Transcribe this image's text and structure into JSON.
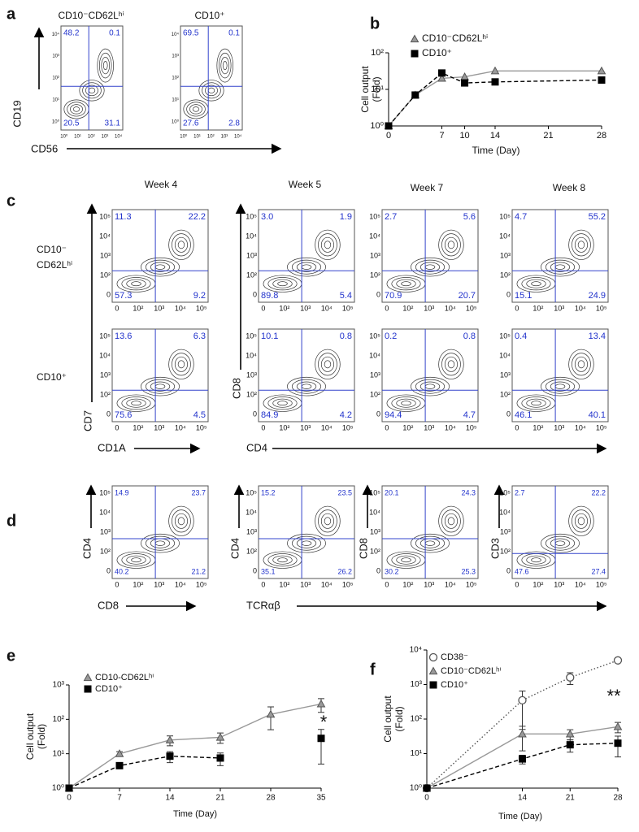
{
  "panel_labels": [
    "a",
    "b",
    "c",
    "d",
    "e",
    "f"
  ],
  "a_ticks": [
    "10⁰",
    "10¹",
    "10²",
    "10³",
    "10⁴"
  ],
  "flow_ticks": [
    "0",
    "10²",
    "10³",
    "10⁴",
    "10⁵"
  ],
  "flow_a": {
    "col_titles": [
      "CD10⁻CD62Lʰⁱ",
      "CD10⁺"
    ],
    "y_label": "CD19",
    "x_label": "CD56",
    "plots": [
      [
        "48.2",
        "0.1",
        "20.5",
        "31.1"
      ],
      [
        "69.5",
        "0.1",
        "27.6",
        "2.8"
      ]
    ]
  },
  "flow_c": {
    "col_titles": [
      "Week 4",
      "Week 5",
      "Week 7",
      "Week 8"
    ],
    "row_labels": [
      [
        "CD10⁻",
        "CD62Lʰⁱ"
      ],
      [
        "CD10⁺"
      ]
    ],
    "y_labels": [
      "CD7",
      "CD8"
    ],
    "x_labels": [
      "CD1A",
      "CD4"
    ],
    "plots": [
      [
        [
          "11.3",
          "22.2",
          "57.3",
          "9.2"
        ],
        [
          "3.0",
          "1.9",
          "89.8",
          "5.4"
        ],
        [
          "2.7",
          "5.6",
          "70.9",
          "20.7"
        ],
        [
          "4.7",
          "55.2",
          "15.1",
          "24.9"
        ]
      ],
      [
        [
          "13.6",
          "6.3",
          "75.6",
          "4.5"
        ],
        [
          "10.1",
          "0.8",
          "84.9",
          "4.2"
        ],
        [
          "0.2",
          "0.8",
          "94.4",
          "4.7"
        ],
        [
          "0.4",
          "13.4",
          "46.1",
          "40.1"
        ]
      ]
    ]
  },
  "flow_d": {
    "y_labels": [
      "CD4",
      "CD4",
      "CD8",
      "CD3"
    ],
    "x_labels": [
      "CD8",
      "TCRαβ"
    ],
    "plots": [
      [
        "14.9",
        "23.7",
        "40.2",
        "21.2"
      ],
      [
        "15.2",
        "23.5",
        "35.1",
        "26.2"
      ],
      [
        "20.1",
        "24.3",
        "30.2",
        "25.3"
      ],
      [
        "2.7",
        "22.2",
        "47.6",
        "27.4"
      ]
    ]
  },
  "chart_data": [
    {
      "type": "line",
      "y_label": [
        "Cell output",
        "(Fold)"
      ],
      "x_label": "Time (Day)",
      "log_y": true,
      "x": [
        0,
        3.5,
        7,
        10,
        14,
        28
      ],
      "xlim": [
        0,
        28
      ],
      "xticks": [
        0,
        7,
        10,
        14,
        21,
        28
      ],
      "ylim": [
        1,
        100
      ],
      "yticks": [
        {
          "value": 1,
          "label": "10⁰"
        },
        {
          "value": 10,
          "label": "10¹"
        },
        {
          "value": 100,
          "label": "10²"
        }
      ],
      "series": [
        {
          "name": "CD10⁻CD62Lʰⁱ",
          "color": "#999999",
          "marker": "triangle",
          "dash": "solid",
          "values": [
            1,
            7,
            20,
            22,
            32,
            32
          ]
        },
        {
          "name": "CD10⁺",
          "color": "#000000",
          "marker": "square",
          "dash": "dashed",
          "values": [
            1,
            7,
            28,
            15,
            16,
            18
          ]
        }
      ]
    },
    {
      "type": "line",
      "y_label": [
        "Cell output",
        "(Fold)"
      ],
      "x_label": "Time (Day)",
      "log_y": true,
      "annotation": "*",
      "x": [
        0,
        7,
        14,
        21,
        28,
        35
      ],
      "xlim": [
        0,
        35
      ],
      "xticks": [
        0,
        7,
        14,
        21,
        28,
        35
      ],
      "ylim": [
        1,
        1000
      ],
      "yticks": [
        {
          "value": 1,
          "label": "10⁰"
        },
        {
          "value": 10,
          "label": "10¹"
        },
        {
          "value": 100,
          "label": "10²"
        },
        {
          "value": 1000,
          "label": "10³"
        }
      ],
      "series": [
        {
          "name": "CD10-CD62Lʰⁱ",
          "color": "#999999",
          "marker": "triangle",
          "dash": "solid",
          "values": [
            1,
            10,
            25,
            30,
            140,
            280
          ],
          "errors": [
            null,
            1.5,
            8,
            10,
            90,
            120
          ]
        },
        {
          "name": "CD10⁺",
          "color": "#000000",
          "marker": "square",
          "dash": "dashed",
          "values": [
            1,
            4.5,
            8.5,
            7.5,
            null,
            28
          ],
          "errors": [
            null,
            0.6,
            3,
            3,
            null,
            23
          ]
        }
      ]
    },
    {
      "type": "line",
      "y_label": [
        "Cell output",
        "(Fold)"
      ],
      "x_label": "Time (Day)",
      "log_y": true,
      "annotation": "**",
      "x": [
        0,
        14,
        21,
        28
      ],
      "xlim": [
        0,
        28
      ],
      "xticks": [
        0,
        14,
        21,
        28
      ],
      "ylim": [
        1,
        10000
      ],
      "yticks": [
        {
          "value": 1,
          "label": "10⁰"
        },
        {
          "value": 10,
          "label": "10¹"
        },
        {
          "value": 100,
          "label": "10²"
        },
        {
          "value": 1000,
          "label": "10³"
        },
        {
          "value": 10000,
          "label": "10⁴"
        }
      ],
      "series": [
        {
          "name": "CD38⁻",
          "color": "#555555",
          "marker": "circle",
          "dash": "dotted",
          "values": [
            1,
            350,
            1600,
            5000
          ],
          "errors": [
            null,
            300,
            600,
            null
          ]
        },
        {
          "name": "CD10⁻CD62Lʰⁱ",
          "color": "#999999",
          "marker": "triangle",
          "dash": "solid",
          "values": [
            1,
            37,
            37,
            60
          ],
          "errors": [
            null,
            25,
            12,
            20
          ]
        },
        {
          "name": "CD10⁺",
          "color": "#000000",
          "marker": "square",
          "dash": "dashed",
          "values": [
            1,
            7,
            18,
            20
          ],
          "errors": [
            null,
            2,
            7,
            12
          ]
        }
      ]
    }
  ]
}
